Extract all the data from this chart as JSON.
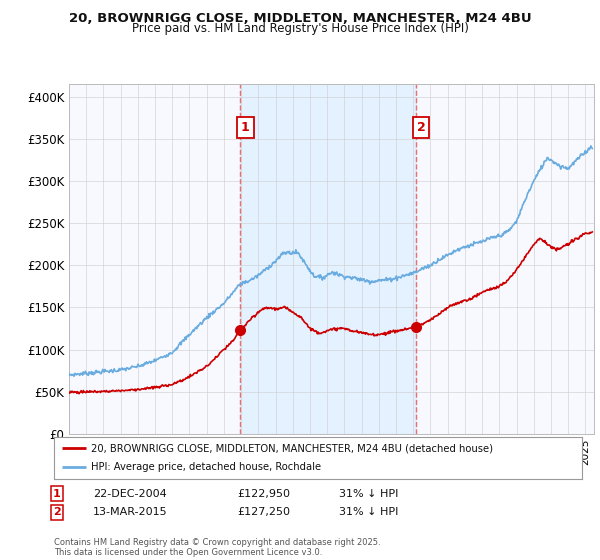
{
  "title1": "20, BROWNRIGG CLOSE, MIDDLETON, MANCHESTER, M24 4BU",
  "title2": "Price paid vs. HM Land Registry's House Price Index (HPI)",
  "ytick_values": [
    0,
    50000,
    100000,
    150000,
    200000,
    250000,
    300000,
    350000,
    400000
  ],
  "ylim": [
    0,
    415000
  ],
  "xlim_start": 1995.0,
  "xlim_end": 2025.5,
  "marker1_x": 2004.95,
  "marker1_y": 122950,
  "marker2_x": 2015.17,
  "marker2_y": 127250,
  "marker1_label": "22-DEC-2004",
  "marker2_label": "13-MAR-2015",
  "marker1_price": "£122,950",
  "marker2_price": "£127,250",
  "marker1_note": "31% ↓ HPI",
  "marker2_note": "31% ↓ HPI",
  "legend_line1": "20, BROWNRIGG CLOSE, MIDDLETON, MANCHESTER, M24 4BU (detached house)",
  "legend_line2": "HPI: Average price, detached house, Rochdale",
  "footer": "Contains HM Land Registry data © Crown copyright and database right 2025.\nThis data is licensed under the Open Government Licence v3.0.",
  "hpi_color": "#6aace0",
  "price_color": "#cc0000",
  "vline_color": "#e87070",
  "span_color": "#ddeeff",
  "plot_bg": "#f7f9ff",
  "fig_bg": "#ffffff",
  "grid_color": "#cccccc",
  "label_box_color": "#cc0000"
}
